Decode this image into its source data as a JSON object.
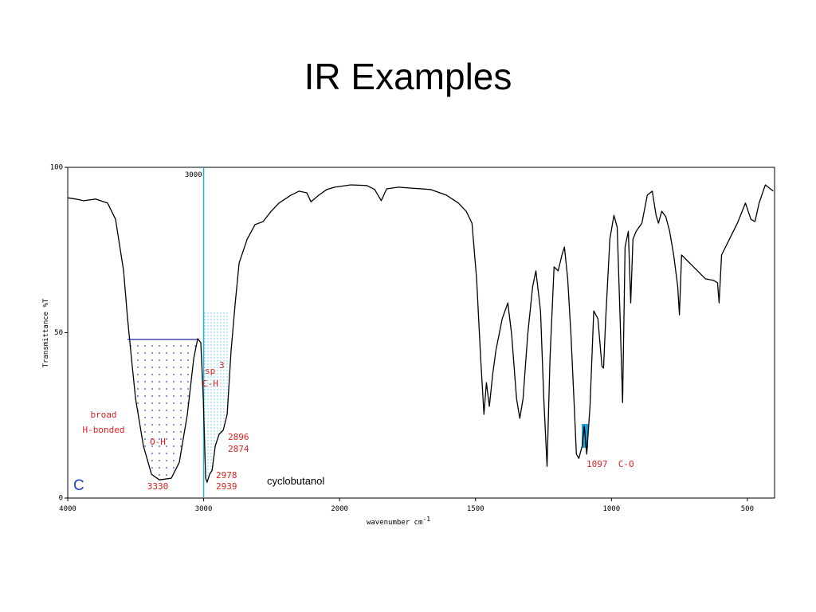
{
  "title": "IR Examples",
  "chart_data": {
    "type": "line",
    "xlabel": "wavenumber cm",
    "xlabel_sup": "-1",
    "ylabel": "Transmittance %T",
    "color": "#000000",
    "xlim": [
      4000,
      400
    ],
    "xticks": [
      4000,
      3000,
      2000,
      1500,
      1000,
      500
    ],
    "ylim": [
      0,
      100
    ],
    "yticks": [
      0,
      50,
      100
    ],
    "marker": 3000,
    "x": [
      4000,
      3941,
      3883,
      3795,
      3707,
      3648,
      3589,
      3560,
      3531,
      3501,
      3443,
      3384,
      3326,
      3238,
      3179,
      3120,
      3073,
      3044,
      3021,
      3003,
      2985,
      2974,
      2956,
      2938,
      2915,
      2886,
      2856,
      2827,
      2798,
      2768,
      2739,
      2680,
      2622,
      2563,
      2504,
      2446,
      2358,
      2299,
      2241,
      2211,
      2153,
      2094,
      2035,
      1959,
      1900,
      1871,
      1847,
      1827,
      1783,
      1666,
      1607,
      1563,
      1534,
      1513,
      1496,
      1481,
      1469,
      1460,
      1449,
      1437,
      1425,
      1402,
      1381,
      1367,
      1349,
      1337,
      1325,
      1308,
      1290,
      1278,
      1261,
      1249,
      1237,
      1226,
      1211,
      1196,
      1182,
      1173,
      1161,
      1149,
      1138,
      1129,
      1120,
      1108,
      1100,
      1091,
      1079,
      1065,
      1050,
      1035,
      1029,
      1021,
      1006,
      991,
      979,
      968,
      959,
      950,
      938,
      929,
      921,
      909,
      888,
      868,
      850,
      836,
      827,
      815,
      800,
      786,
      771,
      756,
      750,
      742,
      727,
      698,
      654,
      624,
      610,
      604,
      595,
      566,
      537,
      507,
      487,
      472,
      457,
      434,
      405
    ],
    "values": [
      90.8,
      90.4,
      89.9,
      90.4,
      89.2,
      84.3,
      68.7,
      54.2,
      42.2,
      30.1,
      15.7,
      7.2,
      5.5,
      6.0,
      10.8,
      25.3,
      42.2,
      48.2,
      47.0,
      30.1,
      6.0,
      4.8,
      7.2,
      8.4,
      15.7,
      19.3,
      20.5,
      25.3,
      44.6,
      59.0,
      71.1,
      78.3,
      82.7,
      83.6,
      86.7,
      89.2,
      91.6,
      92.8,
      92.3,
      89.6,
      91.6,
      93.3,
      94.0,
      94.7,
      94.5,
      93.3,
      89.9,
      93.5,
      94.0,
      93.3,
      91.6,
      89.2,
      86.7,
      83.1,
      66.3,
      42.2,
      25.3,
      34.9,
      27.7,
      37.3,
      44.6,
      54.2,
      59.0,
      49.4,
      30.1,
      24.1,
      30.1,
      49.4,
      63.9,
      68.7,
      56.6,
      30.1,
      9.6,
      42.2,
      69.9,
      68.7,
      73.5,
      75.9,
      66.3,
      49.4,
      30.1,
      13.3,
      12.0,
      15.7,
      21.7,
      13.3,
      27.7,
      56.6,
      54.2,
      39.8,
      39.3,
      54.2,
      78.3,
      85.5,
      81.9,
      54.2,
      28.9,
      75.9,
      80.7,
      59.0,
      78.3,
      80.7,
      83.1,
      91.6,
      92.8,
      85.5,
      83.1,
      86.7,
      85.1,
      80.7,
      73.5,
      63.9,
      55.4,
      73.5,
      72.3,
      69.9,
      66.3,
      65.8,
      65.1,
      59.0,
      73.5,
      78.3,
      83.1,
      89.2,
      84.3,
      83.6,
      89.2,
      94.7,
      92.8
    ],
    "annotations": {
      "broad": "broad",
      "h_bonded": "H-bonded",
      "oh": "O-H",
      "oh_peak": "3330",
      "sp": "sp",
      "sp_sup": "3",
      "ch": "C-H",
      "ch1": "2896",
      "ch2": "2874",
      "ch3": "2978",
      "ch4": "2939",
      "co": "1097  C-O",
      "compound": "cyclobutanol",
      "panel": "C"
    }
  }
}
